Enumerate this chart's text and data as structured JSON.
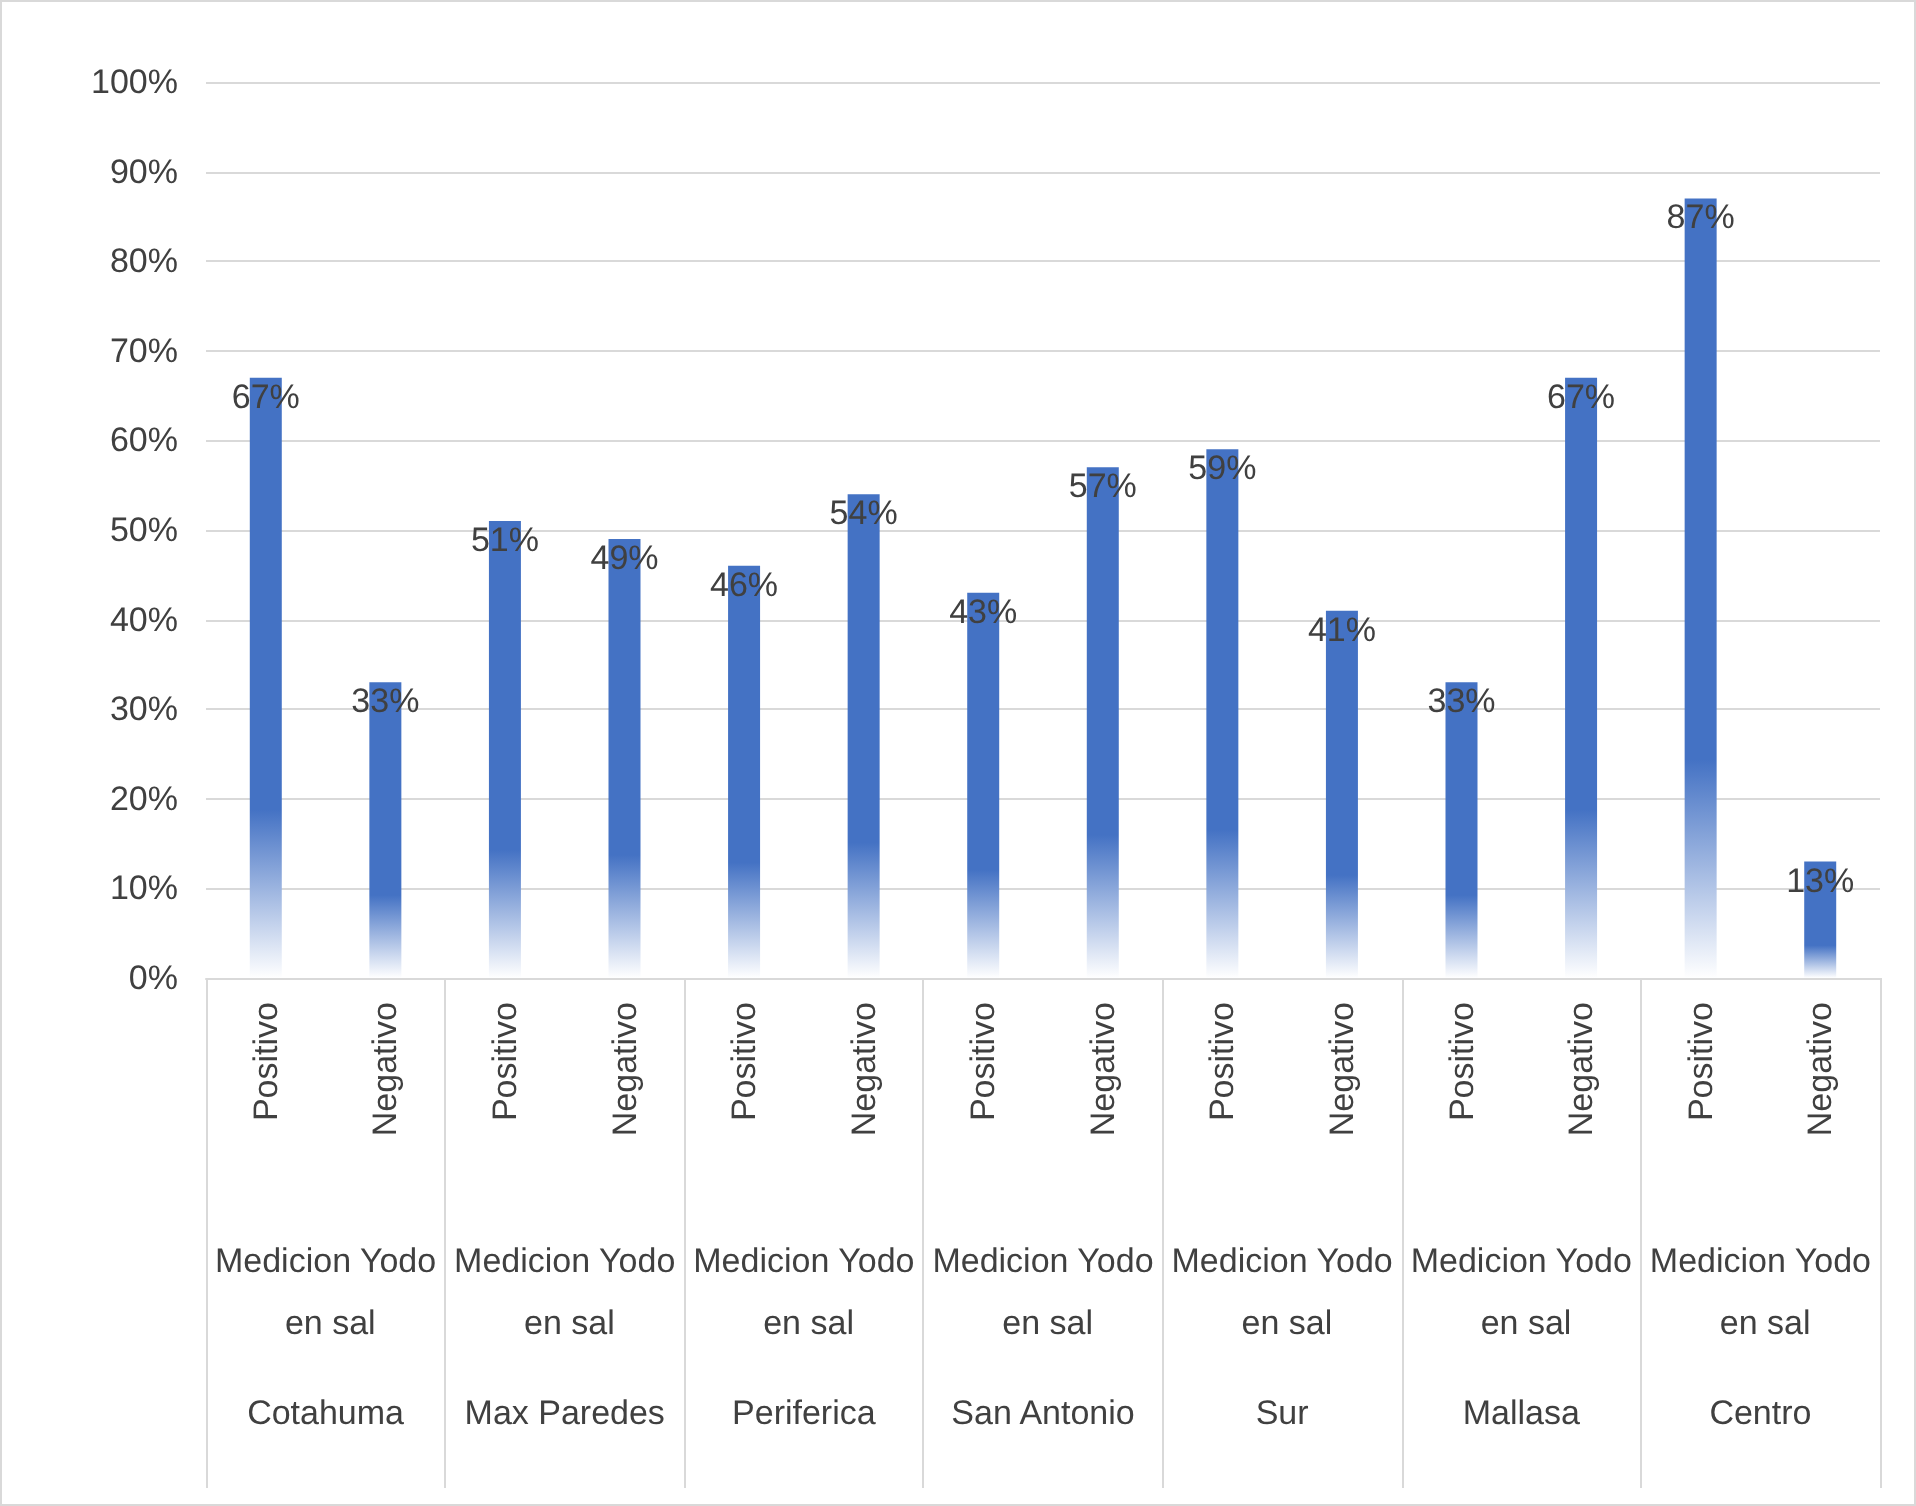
{
  "chart_data": {
    "type": "bar",
    "categories": [
      "Positivo",
      "Negativo",
      "Positivo",
      "Negativo",
      "Positivo",
      "Negativo",
      "Positivo",
      "Negativo",
      "Positivo",
      "Negativo",
      "Positivo",
      "Negativo",
      "Positivo",
      "Negativo"
    ],
    "values": [
      67,
      33,
      51,
      49,
      46,
      54,
      43,
      57,
      59,
      41,
      33,
      67,
      87,
      13
    ],
    "value_labels": [
      "67%",
      "33%",
      "51%",
      "49%",
      "46%",
      "54%",
      "43%",
      "57%",
      "59%",
      "41%",
      "33%",
      "67%",
      "87%",
      "13%"
    ],
    "color": "#4472c4",
    "ylim": [
      0,
      100
    ],
    "yticks": [
      {
        "value": 0,
        "label": "0%"
      },
      {
        "value": 10,
        "label": "10%"
      },
      {
        "value": 20,
        "label": "20%"
      },
      {
        "value": 30,
        "label": "30%"
      },
      {
        "value": 40,
        "label": "40%"
      },
      {
        "value": 50,
        "label": "50%"
      },
      {
        "value": 60,
        "label": "60%"
      },
      {
        "value": 70,
        "label": "70%"
      },
      {
        "value": 80,
        "label": "80%"
      },
      {
        "value": 90,
        "label": "90%"
      },
      {
        "value": 100,
        "label": "100%"
      }
    ],
    "grid": "y",
    "annotations": [
      "Medicion Yodo en sal",
      "Medicion Yodo en sal",
      "Medicion Yodo en sal",
      "Medicion Yodo en sal",
      "Medicion Yodo en sal",
      "Medicion Yodo en sal",
      "Medicion Yodo en sal",
      "Cotahuma",
      "Max Paredes",
      "Periferica",
      "San Antonio",
      "Sur",
      "Mallasa",
      "Centro"
    ]
  }
}
